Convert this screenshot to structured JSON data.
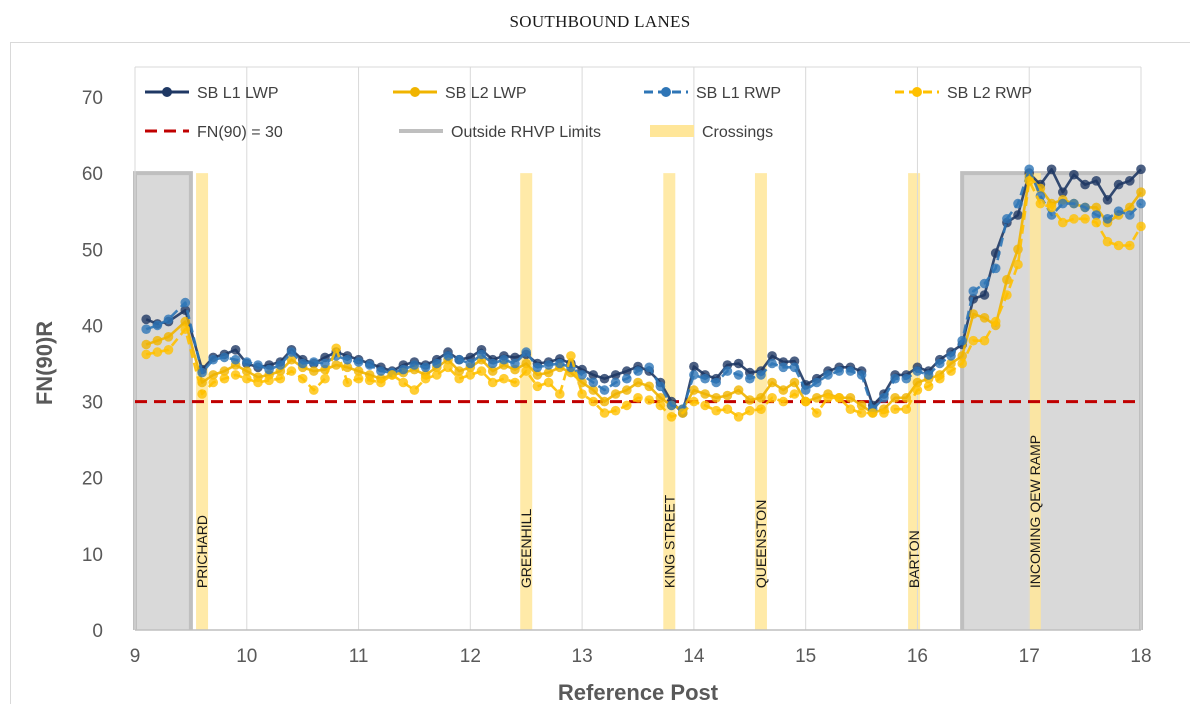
{
  "chart_data": {
    "type": "line",
    "title": "SOUTHBOUND LANES",
    "xlabel": "Reference Post",
    "ylabel": "FN(90)R",
    "xlim": [
      9,
      18
    ],
    "ylim": [
      0,
      70
    ],
    "xticks": [
      "9",
      "10",
      "11",
      "12",
      "13",
      "14",
      "15",
      "16",
      "17",
      "18"
    ],
    "yticks": [
      "0",
      "10",
      "20",
      "30",
      "40",
      "50",
      "60",
      "70"
    ],
    "grid": "vertical",
    "threshold": {
      "name": "FN(90) = 30",
      "value": 30,
      "color": "#c00000"
    },
    "outside_regions": {
      "name": "Outside RHVP Limits",
      "color": "#bfbfbf",
      "ranges": [
        [
          9.0,
          9.5
        ],
        [
          16.4,
          18.0
        ]
      ],
      "ymax": 60
    },
    "crossings": {
      "name": "Crossings",
      "color": "#ffe699",
      "items": [
        {
          "x": 9.6,
          "label": "PRICHARD"
        },
        {
          "x": 12.5,
          "label": "GREENHILL"
        },
        {
          "x": 13.78,
          "label": "KING STREET"
        },
        {
          "x": 14.6,
          "label": "QUEENSTON"
        },
        {
          "x": 15.97,
          "label": "BARTON"
        },
        {
          "x": 17.05,
          "label": "INCOMING QEW RAMP"
        }
      ]
    },
    "series": [
      {
        "name": "SB L1 LWP",
        "color": "#1f3864",
        "dash": false,
        "x": [
          9.1,
          9.2,
          9.3,
          9.45,
          9.6,
          9.7,
          9.8,
          9.9,
          10.0,
          10.1,
          10.2,
          10.3,
          10.4,
          10.5,
          10.6,
          10.7,
          10.8,
          10.9,
          11.0,
          11.1,
          11.2,
          11.3,
          11.4,
          11.5,
          11.6,
          11.7,
          11.8,
          11.9,
          12.0,
          12.1,
          12.2,
          12.3,
          12.4,
          12.5,
          12.6,
          12.7,
          12.8,
          12.9,
          13.0,
          13.1,
          13.2,
          13.3,
          13.4,
          13.5,
          13.6,
          13.7,
          13.8,
          13.9,
          14.0,
          14.1,
          14.2,
          14.3,
          14.4,
          14.5,
          14.6,
          14.7,
          14.8,
          14.9,
          15.0,
          15.1,
          15.2,
          15.3,
          15.4,
          15.5,
          15.6,
          15.7,
          15.8,
          15.9,
          16.0,
          16.1,
          16.2,
          16.3,
          16.4,
          16.5,
          16.6,
          16.7,
          16.8,
          16.9,
          17.0,
          17.1,
          17.2,
          17.3,
          17.4,
          17.5,
          17.6,
          17.7,
          17.8,
          17.9,
          18.0
        ],
        "y": [
          40.8,
          40.2,
          40.5,
          42.0,
          34.2,
          35.8,
          36.2,
          36.8,
          35.0,
          34.5,
          34.8,
          35.2,
          36.8,
          35.5,
          35.0,
          35.8,
          36.5,
          36.0,
          35.5,
          35.0,
          34.5,
          34.0,
          34.8,
          35.2,
          34.8,
          35.5,
          36.5,
          35.5,
          35.8,
          36.8,
          35.5,
          36.0,
          35.8,
          36.2,
          35.0,
          35.2,
          35.6,
          35.0,
          34.2,
          33.5,
          33.0,
          33.5,
          34.0,
          34.6,
          34.0,
          32.5,
          30.0,
          28.5,
          34.6,
          33.5,
          33.0,
          34.8,
          35.0,
          33.8,
          34.0,
          36.0,
          35.2,
          35.3,
          32.2,
          33.0,
          34.0,
          34.5,
          34.5,
          34.0,
          29.5,
          31.0,
          33.5,
          33.5,
          34.5,
          34.0,
          35.5,
          36.5,
          37.5,
          43.5,
          44.0,
          49.5,
          53.5,
          54.5,
          60.0,
          58.5,
          60.5,
          57.5,
          59.8,
          58.5,
          59.0,
          56.5,
          58.5,
          59.0,
          60.5
        ]
      },
      {
        "name": "SB L2 LWP",
        "color": "#f0b400",
        "dash": false,
        "x": [
          9.1,
          9.2,
          9.3,
          9.45,
          9.6,
          9.7,
          9.8,
          9.9,
          10.0,
          10.1,
          10.2,
          10.3,
          10.4,
          10.5,
          10.6,
          10.7,
          10.8,
          10.9,
          11.0,
          11.1,
          11.2,
          11.3,
          11.4,
          11.5,
          11.6,
          11.7,
          11.8,
          11.9,
          12.0,
          12.1,
          12.2,
          12.3,
          12.4,
          12.5,
          12.6,
          12.7,
          12.8,
          12.9,
          13.0,
          13.1,
          13.2,
          13.3,
          13.4,
          13.5,
          13.6,
          13.7,
          13.8,
          13.9,
          14.0,
          14.1,
          14.2,
          14.3,
          14.4,
          14.5,
          14.6,
          14.7,
          14.8,
          14.9,
          15.0,
          15.1,
          15.2,
          15.3,
          15.4,
          15.5,
          15.6,
          15.7,
          15.8,
          15.9,
          16.0,
          16.1,
          16.2,
          16.3,
          16.4,
          16.5,
          16.6,
          16.7,
          16.8,
          16.9,
          17.0,
          17.1,
          17.2,
          17.3,
          17.4,
          17.5,
          17.6,
          17.7,
          17.8,
          17.9,
          18.0
        ],
        "y": [
          37.5,
          38.0,
          38.5,
          40.5,
          32.5,
          33.5,
          34.0,
          34.8,
          34.0,
          33.2,
          33.5,
          34.0,
          35.5,
          34.5,
          34.0,
          34.2,
          34.8,
          34.5,
          34.0,
          33.5,
          33.0,
          33.5,
          33.8,
          34.2,
          33.5,
          34.5,
          35.5,
          34.0,
          34.5,
          35.5,
          34.0,
          34.8,
          34.2,
          35.0,
          33.5,
          33.8,
          34.5,
          33.8,
          32.5,
          31.5,
          30.0,
          31.0,
          31.5,
          32.5,
          32.0,
          30.5,
          29.5,
          29.0,
          31.5,
          31.0,
          30.5,
          30.8,
          31.5,
          30.2,
          30.5,
          32.5,
          31.5,
          32.5,
          30.0,
          30.5,
          31.0,
          30.5,
          30.5,
          29.5,
          28.5,
          29.0,
          30.5,
          30.5,
          32.5,
          33.0,
          33.5,
          35.0,
          36.0,
          41.5,
          41.0,
          40.0,
          46.0,
          50.0,
          59.5,
          58.0,
          56.0,
          56.5,
          56.0,
          55.5,
          55.5,
          53.5,
          54.5,
          55.5,
          57.5
        ]
      },
      {
        "name": "SB L1 RWP",
        "color": "#2e75b6",
        "dash": true,
        "x": [
          9.1,
          9.2,
          9.3,
          9.45,
          9.6,
          9.7,
          9.8,
          9.9,
          10.0,
          10.1,
          10.2,
          10.3,
          10.4,
          10.5,
          10.6,
          10.7,
          10.8,
          10.9,
          11.0,
          11.1,
          11.2,
          11.3,
          11.4,
          11.5,
          11.6,
          11.7,
          11.8,
          11.9,
          12.0,
          12.1,
          12.2,
          12.3,
          12.4,
          12.5,
          12.6,
          12.7,
          12.8,
          12.9,
          13.0,
          13.1,
          13.2,
          13.3,
          13.4,
          13.5,
          13.6,
          13.7,
          13.8,
          13.9,
          14.0,
          14.1,
          14.2,
          14.3,
          14.4,
          14.5,
          14.6,
          14.7,
          14.8,
          14.9,
          15.0,
          15.1,
          15.2,
          15.3,
          15.4,
          15.5,
          15.6,
          15.7,
          15.8,
          15.9,
          16.0,
          16.1,
          16.2,
          16.3,
          16.4,
          16.5,
          16.6,
          16.7,
          16.8,
          16.9,
          17.0,
          17.1,
          17.2,
          17.3,
          17.4,
          17.5,
          17.6,
          17.7,
          17.8,
          17.9,
          18.0
        ],
        "y": [
          39.5,
          40.0,
          40.8,
          43.0,
          33.8,
          35.5,
          35.8,
          35.5,
          35.2,
          34.8,
          34.2,
          34.8,
          36.5,
          35.0,
          35.2,
          35.0,
          36.0,
          35.5,
          35.2,
          34.8,
          34.0,
          33.8,
          34.2,
          34.8,
          34.5,
          35.0,
          36.0,
          35.5,
          35.0,
          36.2,
          35.0,
          35.5,
          35.0,
          36.5,
          34.5,
          34.8,
          35.0,
          34.5,
          33.5,
          32.5,
          31.5,
          32.5,
          33.0,
          34.0,
          34.5,
          32.0,
          29.5,
          29.0,
          33.5,
          33.0,
          32.5,
          34.0,
          33.5,
          33.0,
          33.5,
          35.0,
          34.5,
          34.5,
          31.5,
          32.5,
          33.5,
          34.0,
          34.0,
          33.5,
          29.0,
          30.5,
          33.0,
          33.0,
          34.0,
          33.5,
          35.0,
          36.0,
          38.0,
          44.5,
          45.5,
          47.5,
          54.0,
          56.0,
          60.5,
          57.0,
          54.5,
          56.0,
          56.0,
          55.5,
          54.5,
          54.0,
          55.0,
          54.5,
          56.0
        ]
      },
      {
        "name": "SB L2 RWP",
        "color": "#ffc000",
        "dash": true,
        "x": [
          9.1,
          9.2,
          9.3,
          9.45,
          9.6,
          9.7,
          9.8,
          9.9,
          10.0,
          10.1,
          10.2,
          10.3,
          10.4,
          10.5,
          10.6,
          10.7,
          10.8,
          10.9,
          11.0,
          11.1,
          11.2,
          11.3,
          11.4,
          11.5,
          11.6,
          11.7,
          11.8,
          11.9,
          12.0,
          12.1,
          12.2,
          12.3,
          12.4,
          12.5,
          12.6,
          12.7,
          12.8,
          12.9,
          13.0,
          13.1,
          13.2,
          13.3,
          13.4,
          13.5,
          13.6,
          13.7,
          13.8,
          13.9,
          14.0,
          14.1,
          14.2,
          14.3,
          14.4,
          14.5,
          14.6,
          14.7,
          14.8,
          14.9,
          15.0,
          15.1,
          15.2,
          15.3,
          15.4,
          15.5,
          15.6,
          15.7,
          15.8,
          15.9,
          16.0,
          16.1,
          16.2,
          16.3,
          16.4,
          16.5,
          16.6,
          16.7,
          16.8,
          16.9,
          17.0,
          17.1,
          17.2,
          17.3,
          17.4,
          17.5,
          17.6,
          17.7,
          17.8,
          17.9,
          18.0
        ],
        "y": [
          36.2,
          36.5,
          36.8,
          39.5,
          31.0,
          32.5,
          33.0,
          33.5,
          33.0,
          32.5,
          32.8,
          33.0,
          34.0,
          33.0,
          31.5,
          33.0,
          37.0,
          32.5,
          33.0,
          32.8,
          32.5,
          33.5,
          32.5,
          31.5,
          33.0,
          33.5,
          34.5,
          33.0,
          33.5,
          34.0,
          32.5,
          33.0,
          32.5,
          34.0,
          32.0,
          32.5,
          31.0,
          36.0,
          31.0,
          30.0,
          28.5,
          28.8,
          29.5,
          30.5,
          30.2,
          29.5,
          28.0,
          28.5,
          30.0,
          29.5,
          28.8,
          29.0,
          28.0,
          28.8,
          29.0,
          30.5,
          30.0,
          31.0,
          30.0,
          28.5,
          30.5,
          30.5,
          29.0,
          28.5,
          28.5,
          28.5,
          29.0,
          29.0,
          31.5,
          32.0,
          33.0,
          34.0,
          35.0,
          38.0,
          38.0,
          40.5,
          44.0,
          48.0,
          59.0,
          56.0,
          55.5,
          53.5,
          54.0,
          54.0,
          53.5,
          51.0,
          50.5,
          50.5,
          53.0
        ]
      }
    ],
    "legend": {
      "position": "top",
      "entries": [
        "SB L1 LWP",
        "SB L2 LWP",
        "SB L1 RWP",
        "SB L2 RWP",
        "FN(90) = 30",
        "Outside RHVP Limits",
        "Crossings"
      ]
    }
  }
}
